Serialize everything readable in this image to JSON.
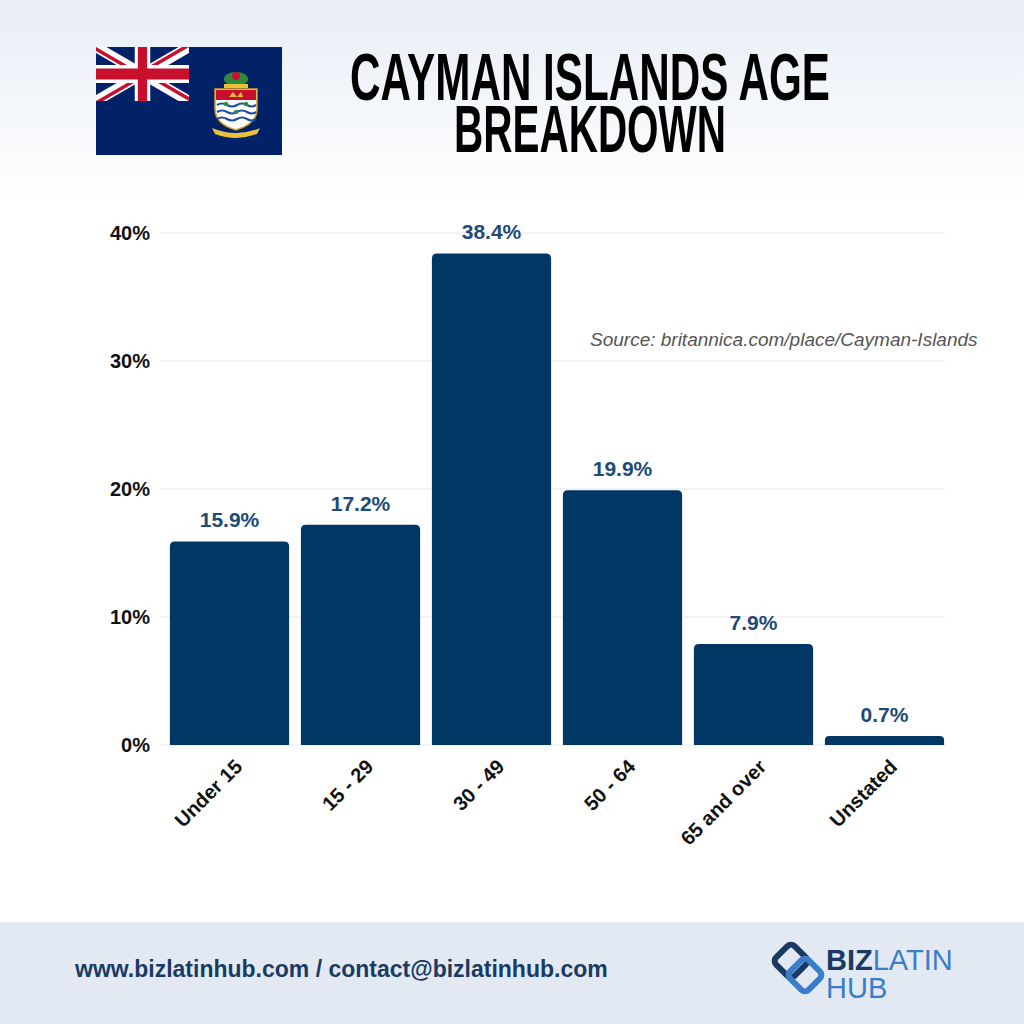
{
  "chart_data": {
    "type": "bar",
    "title": "CAYMAN ISLANDS AGE BREAKDOWN",
    "source": "Source: britannica.com/place/Cayman-Islands",
    "categories": [
      "Under 15",
      "15 - 29",
      "30 - 49",
      "50 - 64",
      "65 and over",
      "Unstated"
    ],
    "values": [
      15.9,
      17.2,
      38.4,
      19.9,
      7.9,
      0.7
    ],
    "value_labels": [
      "15.9%",
      "17.2%",
      "38.4%",
      "19.9%",
      "7.9%",
      "0.7%"
    ],
    "color": "#003764",
    "ylim": [
      0,
      40
    ],
    "yticks": [
      {
        "value": 0,
        "label": "0%"
      },
      {
        "value": 10,
        "label": "10%"
      },
      {
        "value": 20,
        "label": "20%"
      },
      {
        "value": 30,
        "label": "30%"
      },
      {
        "value": 40,
        "label": "40%"
      }
    ],
    "grid": true,
    "data_labels": true
  },
  "footer": {
    "contact": "www.bizlatinhub.com / contact@bizlatinhub.com",
    "logo": [
      "BIZ",
      "LATIN",
      "HUB"
    ]
  }
}
